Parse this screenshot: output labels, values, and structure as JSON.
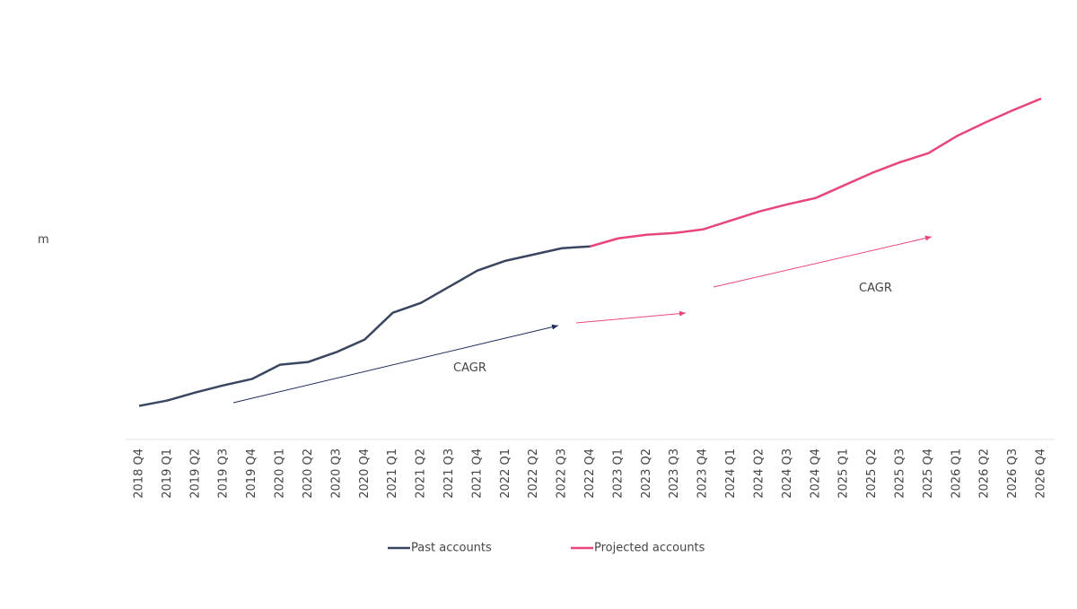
{
  "chart_data": {
    "type": "line",
    "y_label": "m",
    "categories": [
      "2018 Q4",
      "2019 Q1",
      "2019 Q2",
      "2019 Q3",
      "2019 Q4",
      "2020 Q1",
      "2020 Q2",
      "2020 Q3",
      "2020 Q4",
      "2021 Q1",
      "2021 Q2",
      "2021 Q3",
      "2021 Q4",
      "2022 Q1",
      "2022 Q2",
      "2022 Q3",
      "2022 Q4",
      "2023 Q1",
      "2023 Q2",
      "2023 Q3",
      "2023 Q4",
      "2024 Q1",
      "2024 Q2",
      "2024 Q3",
      "2024 Q4",
      "2025 Q1",
      "2025 Q2",
      "2025 Q3",
      "2025 Q4",
      "2026 Q1",
      "2026 Q2",
      "2026 Q3",
      "2026 Q4"
    ],
    "series": [
      {
        "name": "Past accounts",
        "color": "#3a4660",
        "values": [
          5.0,
          5.12,
          5.3,
          5.46,
          5.6,
          5.92,
          5.98,
          6.2,
          6.48,
          7.08,
          7.3,
          7.66,
          8.02,
          8.24,
          8.38,
          8.52,
          8.56,
          null,
          null,
          null,
          null,
          null,
          null,
          null,
          null,
          null,
          null,
          null,
          null,
          null,
          null,
          null,
          null
        ]
      },
      {
        "name": "Projected accounts",
        "color": "#e8457f",
        "values": [
          null,
          null,
          null,
          null,
          null,
          null,
          null,
          null,
          null,
          null,
          null,
          null,
          null,
          null,
          null,
          null,
          8.56,
          8.74,
          8.82,
          8.86,
          8.94,
          9.14,
          9.34,
          9.5,
          9.64,
          9.92,
          10.2,
          10.44,
          10.64,
          11.02,
          11.32,
          11.6,
          11.86
        ]
      }
    ],
    "ylim": [
      4.25,
      13
    ],
    "annotations": [
      "CAGR",
      "CAGR"
    ],
    "legend": "bottom"
  }
}
